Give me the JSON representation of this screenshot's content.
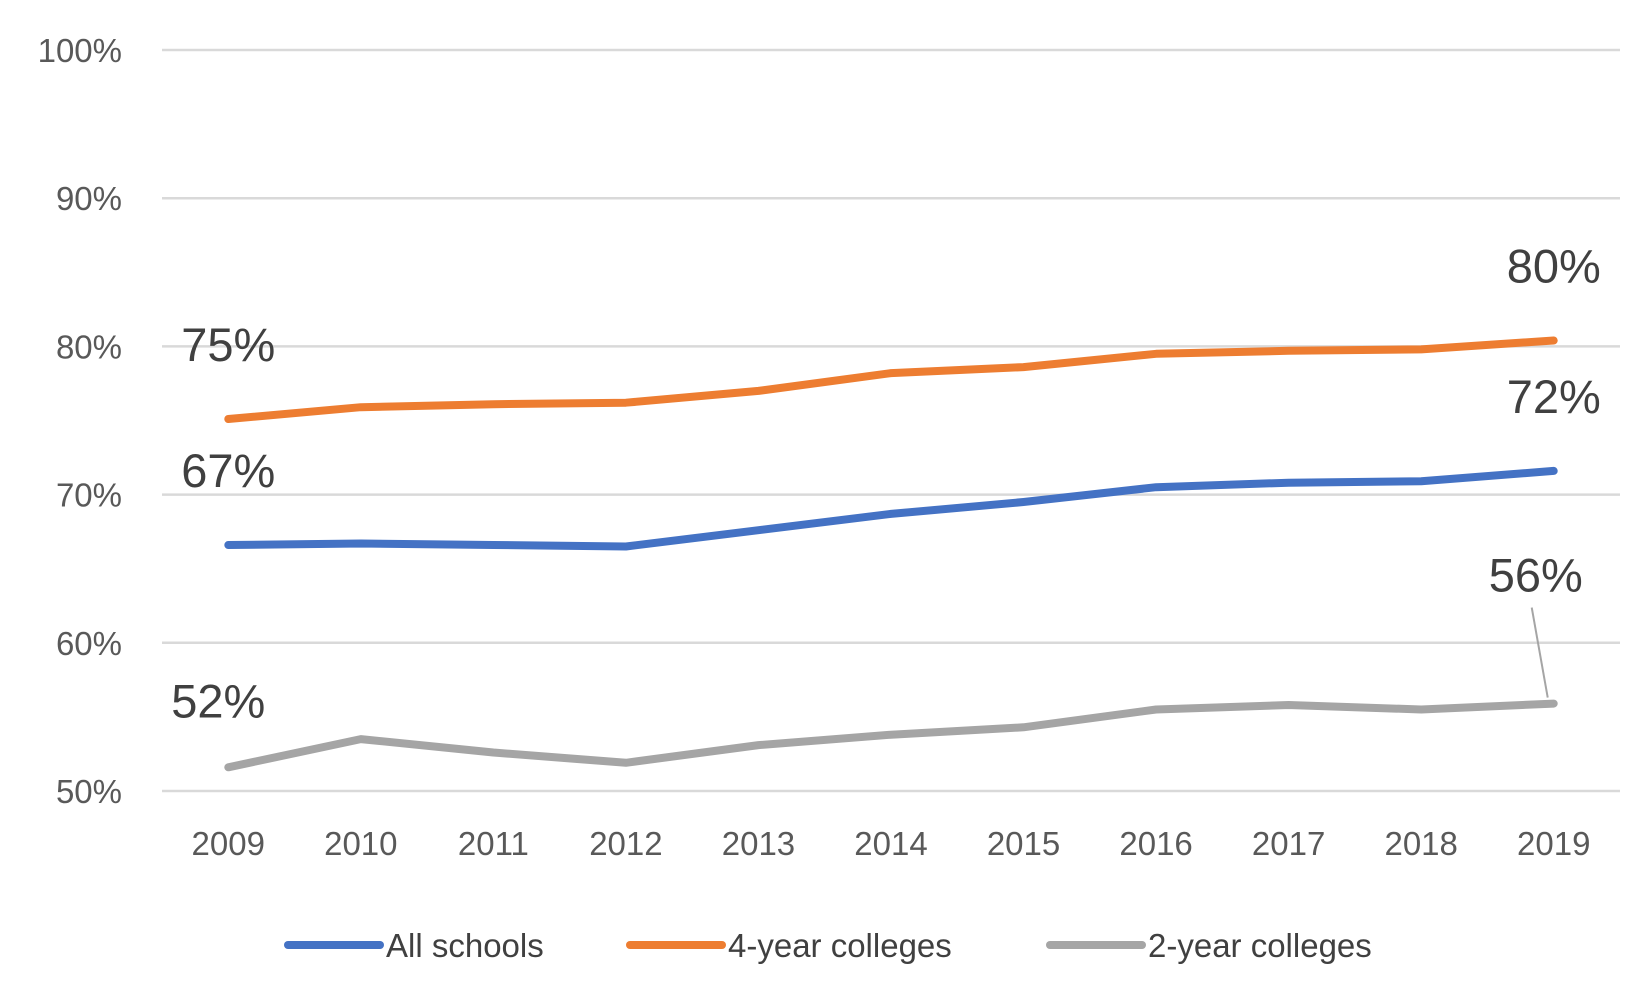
{
  "chart_data": {
    "type": "line",
    "categories": [
      "2009",
      "2010",
      "2011",
      "2012",
      "2013",
      "2014",
      "2015",
      "2016",
      "2017",
      "2018",
      "2019"
    ],
    "ylim": [
      50,
      100
    ],
    "yticks": [
      50,
      60,
      70,
      80,
      90,
      100
    ],
    "y_tick_labels": [
      "50%",
      "60%",
      "70%",
      "80%",
      "90%",
      "100%"
    ],
    "grid": true,
    "legend_position": "bottom",
    "series": [
      {
        "name": "All schools",
        "color": "#4472C4",
        "values": [
          66.6,
          66.7,
          66.6,
          66.5,
          67.6,
          68.7,
          69.5,
          70.5,
          70.8,
          70.9,
          71.6
        ]
      },
      {
        "name": "4-year colleges",
        "color": "#ED7D31",
        "values": [
          75.1,
          75.9,
          76.1,
          76.2,
          77.0,
          78.2,
          78.6,
          79.5,
          79.7,
          79.8,
          80.4
        ]
      },
      {
        "name": "2-year colleges",
        "color": "#A5A5A5",
        "values": [
          51.6,
          53.5,
          52.6,
          51.9,
          53.1,
          53.8,
          54.3,
          55.5,
          55.8,
          55.5,
          55.9
        ]
      }
    ],
    "data_labels": [
      {
        "text": "75%",
        "series": 1,
        "index": 0
      },
      {
        "text": "80%",
        "series": 1,
        "index": 10
      },
      {
        "text": "67%",
        "series": 0,
        "index": 0
      },
      {
        "text": "72%",
        "series": 0,
        "index": 10
      },
      {
        "text": "52%",
        "series": 2,
        "index": 0
      },
      {
        "text": "56%",
        "series": 2,
        "index": 10
      }
    ]
  }
}
